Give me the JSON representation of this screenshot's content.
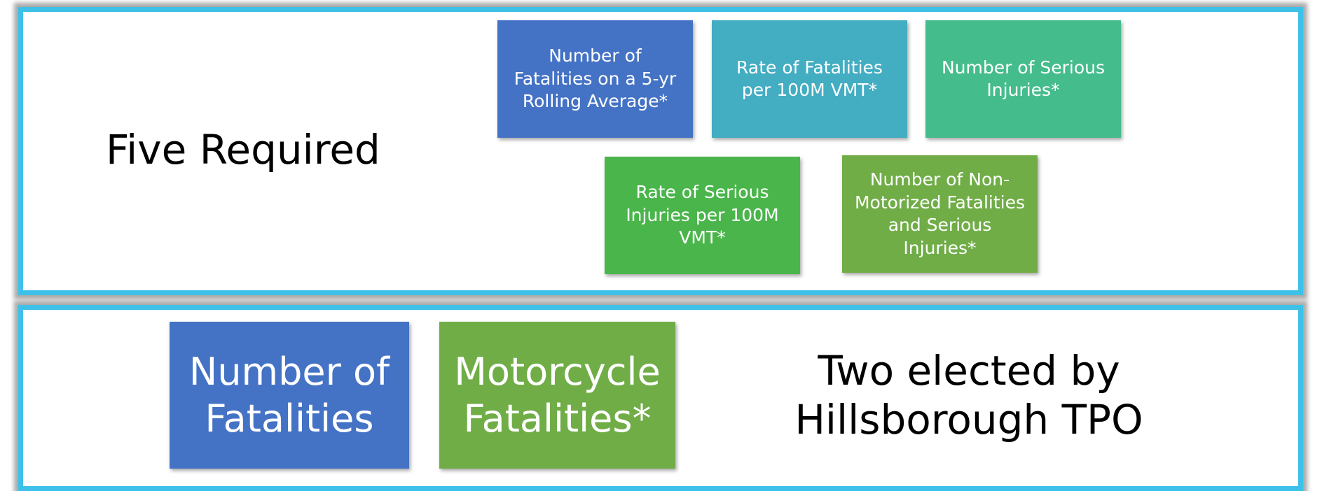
{
  "panels": [
    {
      "title": "Five Required",
      "boxes": [
        {
          "label": "Number of Fatalities on a 5-yr Rolling Average*"
        },
        {
          "label": "Rate of Fatalities per 100M VMT*"
        },
        {
          "label": "Number of Serious Injuries*"
        },
        {
          "label": "Rate of Serious Injuries per 100M VMT*"
        },
        {
          "label": "Number of Non-Motorized Fatalities and Serious Injuries*"
        }
      ]
    },
    {
      "title": "Two elected by Hillsborough TPO",
      "boxes": [
        {
          "label": "Number of Fatalities"
        },
        {
          "label": "Motorcycle Fatalities*"
        }
      ]
    }
  ]
}
